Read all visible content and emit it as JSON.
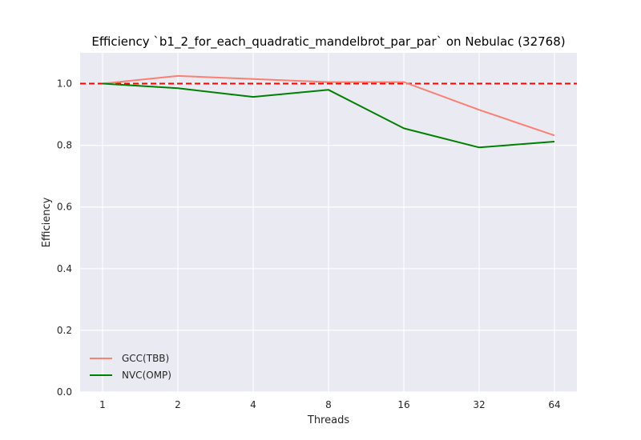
{
  "chart_data": {
    "type": "line",
    "title": "Efficiency `b1_2_for_each_quadratic_mandelbrot_par_par` on Nebulac (32768)",
    "xlabel": "Threads",
    "ylabel": "Efficiency",
    "categories": [
      "1",
      "2",
      "4",
      "8",
      "16",
      "32",
      "64"
    ],
    "ylim": [
      0.0,
      1.1
    ],
    "yticks": [
      "0.0",
      "0.2",
      "0.4",
      "0.6",
      "0.8",
      "1.0"
    ],
    "grid": true,
    "legend_position": "lower-left",
    "reference_line": {
      "y": 1.0,
      "style": "dashed",
      "color": "#ff0000"
    },
    "series": [
      {
        "name": "GCC(TBB)",
        "color": "#fa8072",
        "values": [
          1.0,
          1.025,
          1.015,
          1.005,
          1.005,
          0.915,
          0.832
        ]
      },
      {
        "name": "NVC(OMP)",
        "color": "#008000",
        "values": [
          1.0,
          0.985,
          0.957,
          0.98,
          0.855,
          0.793,
          0.812
        ]
      }
    ],
    "colors": {
      "plot_background": "#eaeaf2",
      "grid": "#ffffff"
    }
  }
}
